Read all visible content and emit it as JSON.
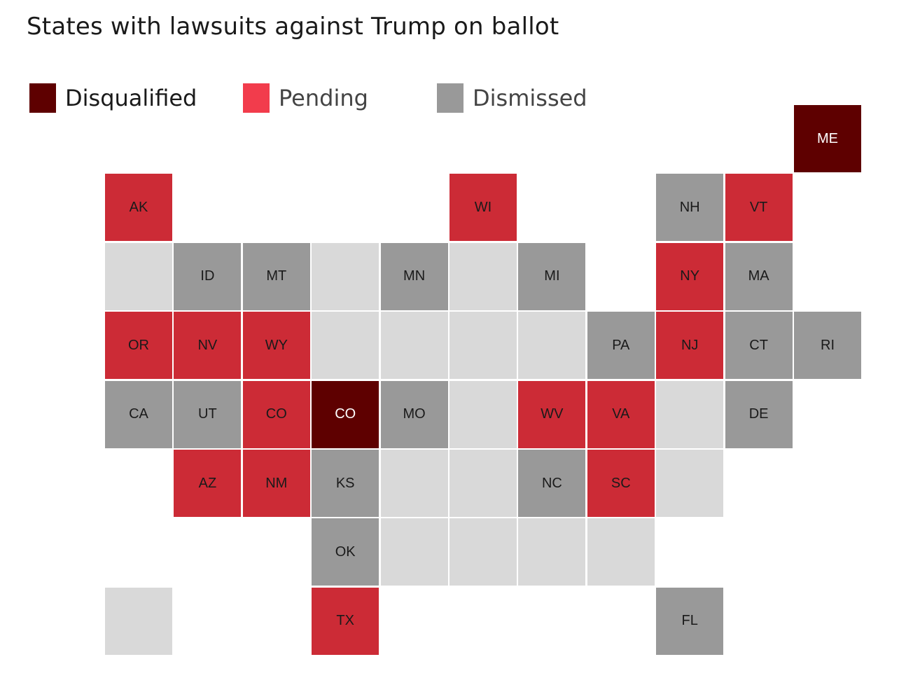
{
  "title": "States with lawsuits against Trump on ballot",
  "legend": [
    {
      "label": "Disqualified",
      "status": "disqualified"
    },
    {
      "label": "Pending",
      "status": "pending"
    },
    {
      "label": "Dismissed",
      "status": "dismissed"
    }
  ],
  "colors": {
    "disqualified": "#5e0000",
    "pending": "#cc2b36",
    "dismissed": "#999999",
    "none": "#d9d9d9",
    "legend_pending": "#f23c4c",
    "legend_disqualified_text": "#1a1a1a",
    "legend_other_text": "#444444",
    "tile_border": "#ffffff"
  },
  "tiles": [
    {
      "label": "ME",
      "status": "disqualified",
      "col": 10,
      "row": 0
    },
    {
      "label": "AK",
      "status": "pending",
      "col": 0,
      "row": 1
    },
    {
      "label": "WI",
      "status": "pending",
      "col": 5,
      "row": 1
    },
    {
      "label": "NH",
      "status": "dismissed",
      "col": 8,
      "row": 1
    },
    {
      "label": "VT",
      "status": "pending",
      "col": 9,
      "row": 1
    },
    {
      "label": "",
      "status": "none",
      "col": 0,
      "row": 2
    },
    {
      "label": "ID",
      "status": "dismissed",
      "col": 1,
      "row": 2
    },
    {
      "label": "MT",
      "status": "dismissed",
      "col": 2,
      "row": 2
    },
    {
      "label": "",
      "status": "none",
      "col": 3,
      "row": 2
    },
    {
      "label": "MN",
      "status": "dismissed",
      "col": 4,
      "row": 2
    },
    {
      "label": "",
      "status": "none",
      "col": 5,
      "row": 2
    },
    {
      "label": "MI",
      "status": "dismissed",
      "col": 6,
      "row": 2
    },
    {
      "label": "NY",
      "status": "pending",
      "col": 8,
      "row": 2
    },
    {
      "label": "MA",
      "status": "dismissed",
      "col": 9,
      "row": 2
    },
    {
      "label": "OR",
      "status": "pending",
      "col": 0,
      "row": 3
    },
    {
      "label": "NV",
      "status": "pending",
      "col": 1,
      "row": 3
    },
    {
      "label": "WY",
      "status": "pending",
      "col": 2,
      "row": 3
    },
    {
      "label": "",
      "status": "none",
      "col": 3,
      "row": 3
    },
    {
      "label": "",
      "status": "none",
      "col": 4,
      "row": 3
    },
    {
      "label": "",
      "status": "none",
      "col": 5,
      "row": 3
    },
    {
      "label": "",
      "status": "none",
      "col": 6,
      "row": 3
    },
    {
      "label": "PA",
      "status": "dismissed",
      "col": 7,
      "row": 3
    },
    {
      "label": "NJ",
      "status": "pending",
      "col": 8,
      "row": 3
    },
    {
      "label": "CT",
      "status": "dismissed",
      "col": 9,
      "row": 3
    },
    {
      "label": "RI",
      "status": "dismissed",
      "col": 10,
      "row": 3
    },
    {
      "label": "CA",
      "status": "dismissed",
      "col": 0,
      "row": 4
    },
    {
      "label": "UT",
      "status": "dismissed",
      "col": 1,
      "row": 4
    },
    {
      "label": "CO",
      "status": "pending",
      "col": 2,
      "row": 4
    },
    {
      "label": "CO",
      "status": "disqualified",
      "col": 3,
      "row": 4
    },
    {
      "label": "MO",
      "status": "dismissed",
      "col": 4,
      "row": 4
    },
    {
      "label": "",
      "status": "none",
      "col": 5,
      "row": 4
    },
    {
      "label": "WV",
      "status": "pending",
      "col": 6,
      "row": 4
    },
    {
      "label": "VA",
      "status": "pending",
      "col": 7,
      "row": 4
    },
    {
      "label": "",
      "status": "none",
      "col": 8,
      "row": 4
    },
    {
      "label": "DE",
      "status": "dismissed",
      "col": 9,
      "row": 4
    },
    {
      "label": "AZ",
      "status": "pending",
      "col": 1,
      "row": 5
    },
    {
      "label": "NM",
      "status": "pending",
      "col": 2,
      "row": 5
    },
    {
      "label": "KS",
      "status": "dismissed",
      "col": 3,
      "row": 5
    },
    {
      "label": "",
      "status": "none",
      "col": 4,
      "row": 5
    },
    {
      "label": "",
      "status": "none",
      "col": 5,
      "row": 5
    },
    {
      "label": "NC",
      "status": "dismissed",
      "col": 6,
      "row": 5
    },
    {
      "label": "SC",
      "status": "pending",
      "col": 7,
      "row": 5
    },
    {
      "label": "",
      "status": "none",
      "col": 8,
      "row": 5
    },
    {
      "label": "OK",
      "status": "dismissed",
      "col": 3,
      "row": 6
    },
    {
      "label": "",
      "status": "none",
      "col": 4,
      "row": 6
    },
    {
      "label": "",
      "status": "none",
      "col": 5,
      "row": 6
    },
    {
      "label": "",
      "status": "none",
      "col": 6,
      "row": 6
    },
    {
      "label": "",
      "status": "none",
      "col": 7,
      "row": 6
    },
    {
      "label": "",
      "status": "none",
      "col": 0,
      "row": 7
    },
    {
      "label": "TX",
      "status": "pending",
      "col": 3,
      "row": 7
    },
    {
      "label": "FL",
      "status": "dismissed",
      "col": 8,
      "row": 7
    }
  ]
}
